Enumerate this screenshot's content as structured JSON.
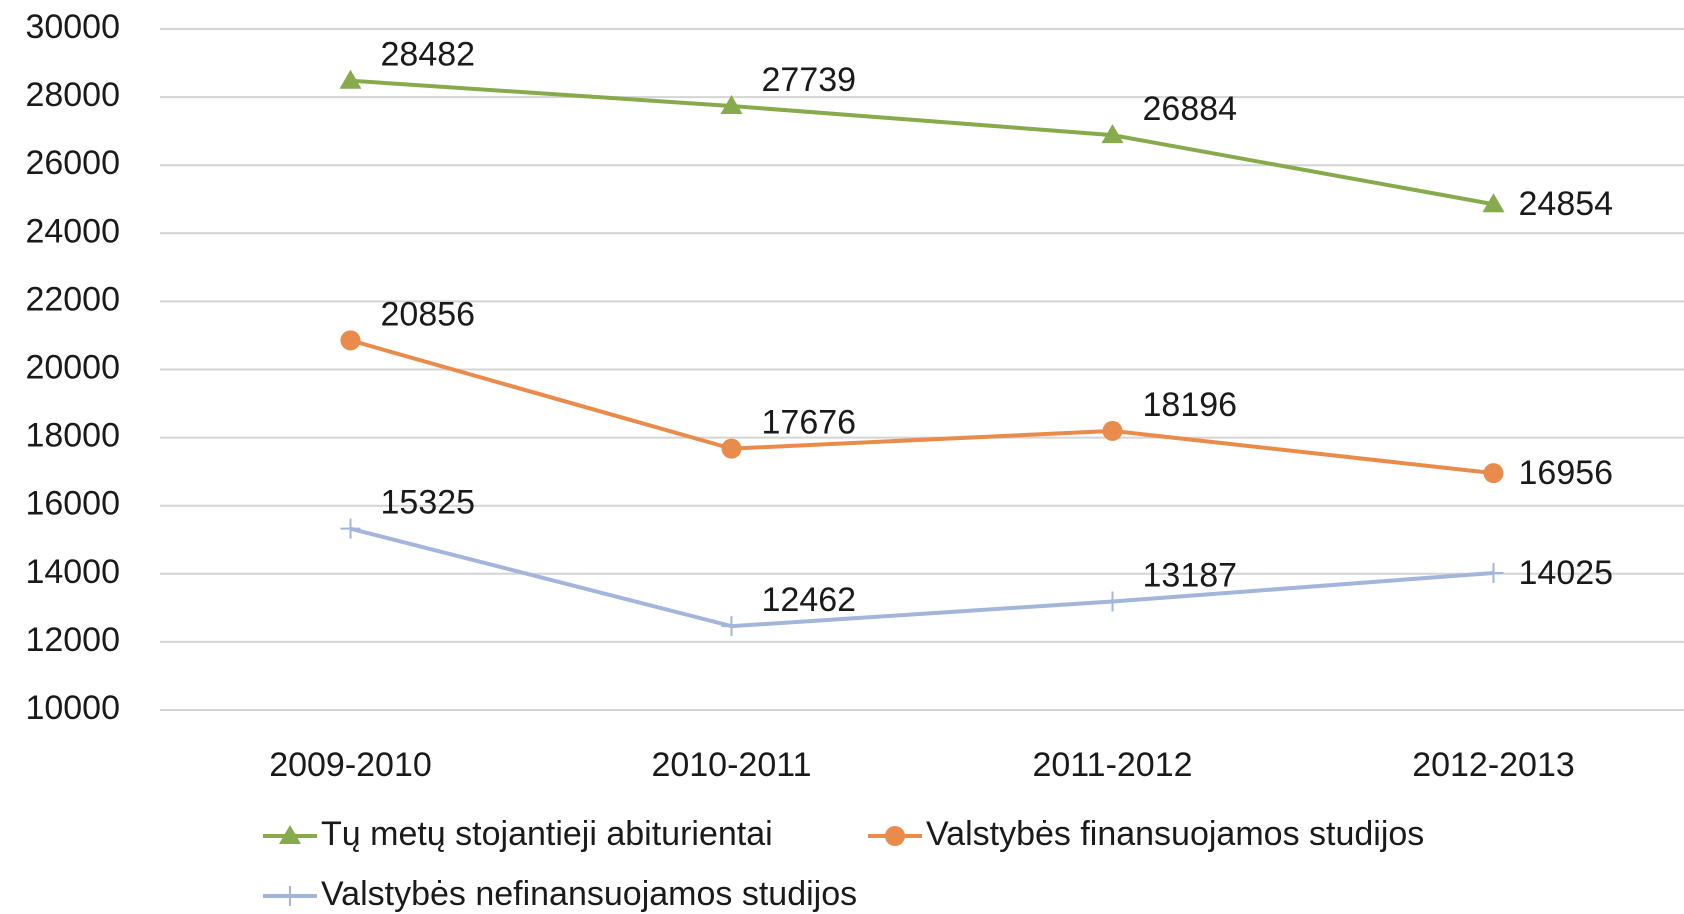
{
  "chart_data": {
    "type": "line",
    "categories": [
      "2009-2010",
      "2010-2011",
      "2011-2012",
      "2012-2013"
    ],
    "series": [
      {
        "name": "Tų metų stojantieji abiturientai",
        "color": "#86aa4c",
        "marker": "triangle",
        "values": [
          28482,
          27739,
          26884,
          24854
        ]
      },
      {
        "name": "Valstybės finansuojamos studijos",
        "color": "#e98b4a",
        "marker": "circle",
        "values": [
          20856,
          17676,
          18196,
          16956
        ]
      },
      {
        "name": "Valstybės nefinansuojamos studijos",
        "color": "#a3b5da",
        "marker": "plus",
        "values": [
          15325,
          12462,
          13187,
          14025
        ]
      }
    ],
    "ylim": [
      10000,
      30000
    ],
    "yticks": [
      10000,
      12000,
      14000,
      16000,
      18000,
      20000,
      22000,
      24000,
      26000,
      28000,
      30000
    ],
    "grid": true,
    "legend": "bottom"
  }
}
